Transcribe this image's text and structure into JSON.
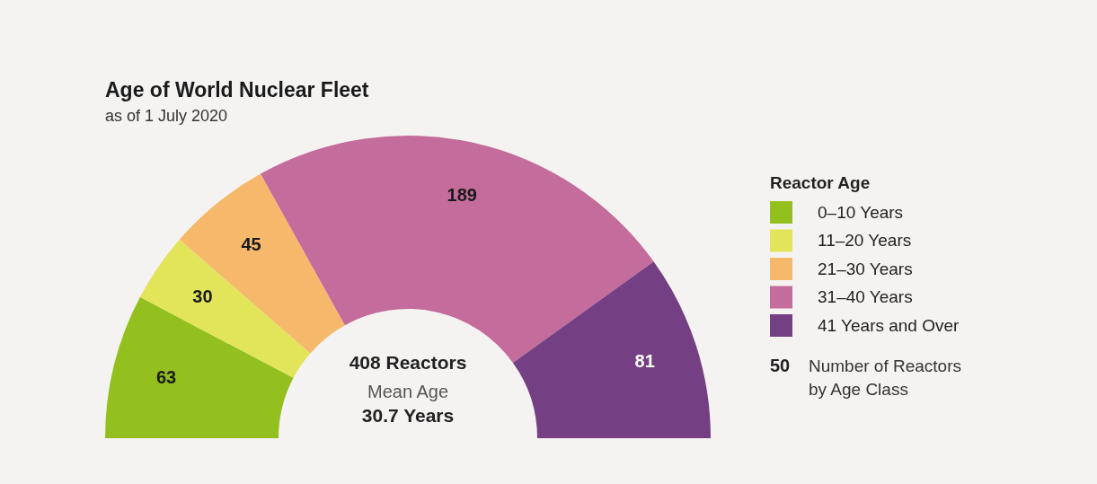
{
  "chart_data": {
    "type": "donut",
    "title": "Age of World Nuclear Fleet",
    "subtitle": "as of 1 July 2020",
    "legend_title": "Reactor Age",
    "categories": [
      "0–10 Years",
      "11–20 Years",
      "21–30 Years",
      "31–40 Years",
      "41 Years and Over"
    ],
    "values": [
      63,
      30,
      45,
      189,
      81
    ],
    "colors": [
      "#93c01f",
      "#e2e45a",
      "#f6b96b",
      "#c46c9b",
      "#744083"
    ],
    "data_labels": true,
    "legend": "right",
    "annotations": [
      "408 Reactors",
      "Mean Age",
      "30.7 Years",
      "50",
      "Number of Reactors by Age Class"
    ]
  }
}
